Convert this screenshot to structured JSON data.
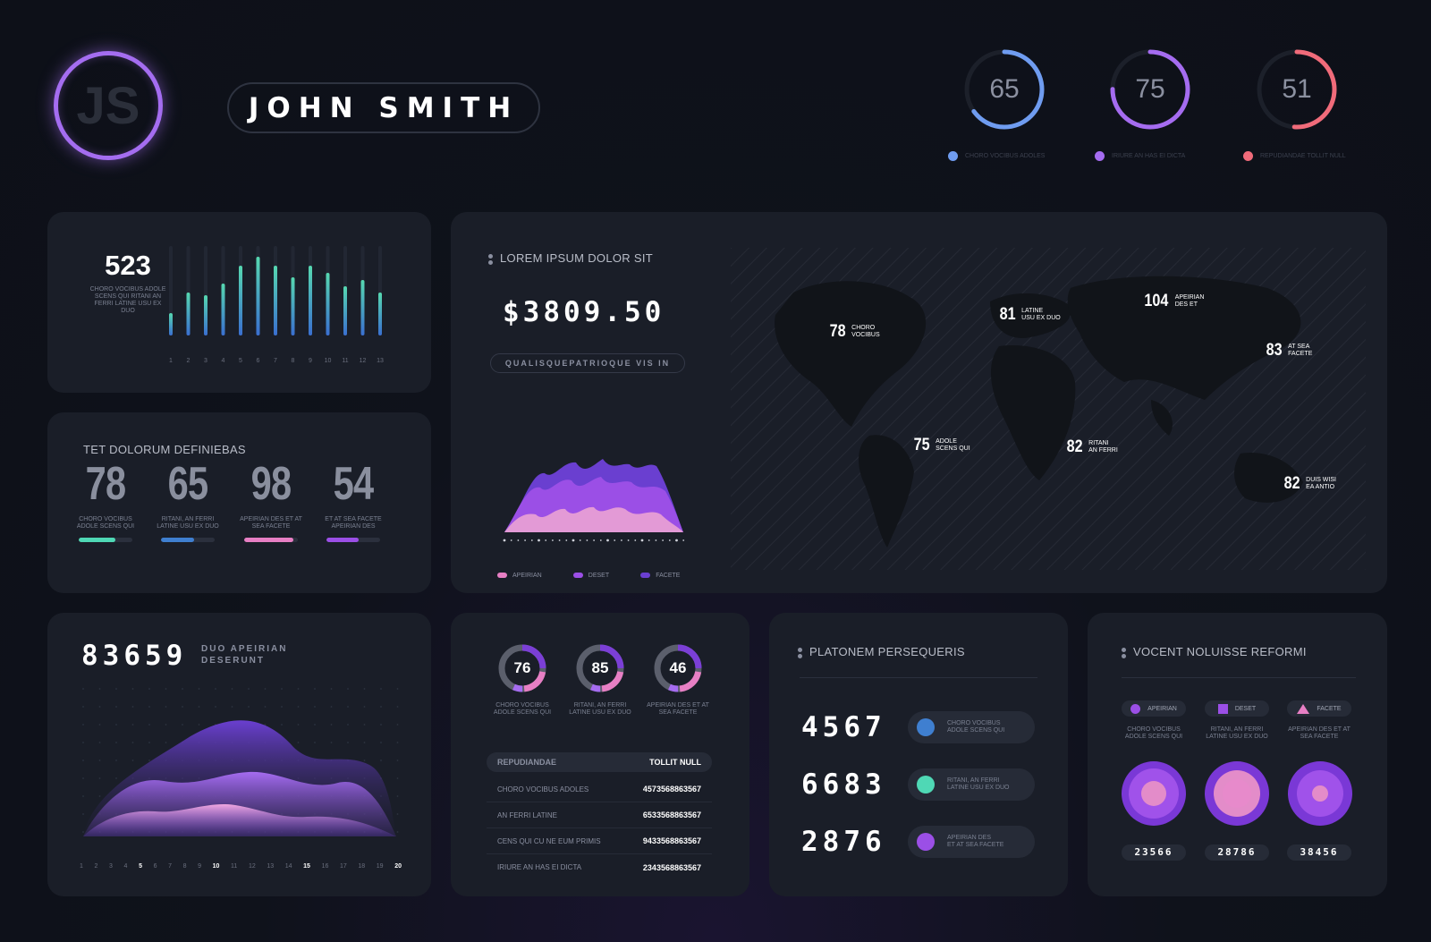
{
  "header": {
    "avatar_initials": "JS",
    "user_name": "JOHN SMITH",
    "rings": [
      {
        "value": "65",
        "pct": 0.65,
        "color": "#6f9cf0",
        "label": "CHORO VOCIBUS ADOLES"
      },
      {
        "value": "75",
        "pct": 0.75,
        "color": "#a56cf0",
        "label": "IRIURE AN HAS EI DICTA"
      },
      {
        "value": "51",
        "pct": 0.51,
        "color": "#f06b7a",
        "label": "REPUDIANDAE TOLLIT NULL"
      }
    ]
  },
  "bars_card": {
    "value": "523",
    "caption": "CHORO VOCIBUS ADOLE SCENS QUI RITANI AN FERRI LATINE USU EX DUO",
    "x_labels": [
      "1",
      "2",
      "3",
      "4",
      "5",
      "6",
      "7",
      "8",
      "9",
      "10",
      "11",
      "12",
      "13"
    ],
    "chart_data": {
      "type": "bar",
      "categories": [
        "1",
        "2",
        "3",
        "4",
        "5",
        "6",
        "7",
        "8",
        "9",
        "10",
        "11",
        "12",
        "13"
      ],
      "values": [
        25,
        48,
        45,
        58,
        78,
        88,
        78,
        65,
        78,
        70,
        55,
        62,
        48
      ],
      "ylim": [
        0,
        100
      ]
    }
  },
  "stats_card": {
    "title": "TET DOLORUM DEFINIEBAS",
    "items": [
      {
        "value": "78",
        "caption": "CHORO VOCIBUS ADOLE SCENS QUI",
        "pct": 0.68,
        "color": "#4fd8b5"
      },
      {
        "value": "65",
        "caption": "RITANI, AN FERRI LATINE USU EX DUO",
        "pct": 0.62,
        "color": "#3f7fd0"
      },
      {
        "value": "98",
        "caption": "APEIRIAN DES ET AT SEA FACETE",
        "pct": 0.92,
        "color": "#e77fc4"
      },
      {
        "value": "54",
        "caption": "ET AT SEA FACETE APEIRIAN DES",
        "pct": 0.6,
        "color": "#9b4fe6"
      }
    ]
  },
  "map_card": {
    "title": "LOREM IPSUM DOLOR SIT",
    "amount": "$3809.50",
    "subtitle": "QUALISQUEPATRIOQUE VIS IN",
    "legend": [
      {
        "label": "APEIRIAN",
        "color": "#e77fc4"
      },
      {
        "label": "DESET",
        "color": "#9b4fe6"
      },
      {
        "label": "FACETE",
        "color": "#6a3fd0"
      }
    ],
    "pins": [
      {
        "value": "78",
        "label1": "CHORO",
        "label2": "VOCIBUS",
        "color": "#9b4fe6"
      },
      {
        "value": "81",
        "label1": "LATINE",
        "label2": "USU EX DUO",
        "color": "#7b3fd6"
      },
      {
        "value": "104",
        "label1": "APEIRIAN",
        "label2": "DES ET",
        "color": "#9b4fe6"
      },
      {
        "value": "83",
        "label1": "AT SEA",
        "label2": "FACETE",
        "color": "#e77fc4"
      },
      {
        "value": "75",
        "label1": "ADOLE",
        "label2": "SCENS QUI",
        "color": "#e77fc4"
      },
      {
        "value": "82",
        "label1": "RITANI",
        "label2": "AN FERRI",
        "color": "#9b4fe6"
      },
      {
        "value": "82",
        "label1": "DUIS WISI",
        "label2": "EA ANTIO",
        "color": "#7b3fd6"
      }
    ]
  },
  "area_card": {
    "value": "83659",
    "label_line1": "DUO APEIRIAN",
    "label_line2": "DESERUNT",
    "x_labels": [
      "1",
      "2",
      "3",
      "4",
      "5",
      "6",
      "7",
      "8",
      "9",
      "10",
      "11",
      "12",
      "13",
      "14",
      "15",
      "16",
      "17",
      "18",
      "19",
      "20"
    ]
  },
  "donut_card": {
    "donuts": [
      {
        "value": "76",
        "caption": "CHORO VOCIBUS ADOLE SCENS QUI"
      },
      {
        "value": "85",
        "caption": "RITANI, AN FERRI LATINE USU EX DUO"
      },
      {
        "value": "46",
        "caption": "APEIRIAN DES ET AT SEA FACETE"
      }
    ],
    "table_header_left": "REPUDIANDAE",
    "table_header_right": "TOLLIT NULL",
    "rows": [
      {
        "k": "CHORO VOCIBUS ADOLES",
        "v": "4573568863567"
      },
      {
        "k": "AN FERRI LATINE",
        "v": "6533568863567"
      },
      {
        "k": "CENS QUI CU NE EUM PRIMIS",
        "v": "9433568863567"
      },
      {
        "k": "IRIURE AN HAS EI DICTA",
        "v": "2343568863567"
      }
    ]
  },
  "plat_card": {
    "title": "PLATONEM PERSEQUERIS",
    "rows": [
      {
        "value": "4567",
        "color": "#3f7fd0",
        "caption1": "CHORO VOCIBUS",
        "caption2": "ADOLE SCENS QUI"
      },
      {
        "value": "6683",
        "color": "#4fd8b5",
        "caption1": "RITANI, AN FERRI",
        "caption2": "LATINE USU EX DUO"
      },
      {
        "value": "2876",
        "color": "#9b4fe6",
        "caption1": "APEIRIAN DES",
        "caption2": "ET AT SEA FACETE"
      }
    ]
  },
  "vocent_card": {
    "title": "VOCENT NOLUISSE REFORMI",
    "chips": [
      {
        "label": "APEIRIAN",
        "shape": "circle-icon"
      },
      {
        "label": "DESET",
        "shape": "square-icon"
      },
      {
        "label": "FACETE",
        "shape": "triangle-icon"
      }
    ],
    "captions": [
      "CHORO VOCIBUS ADOLE SCENS QUI",
      "RITANI, AN FERRI LATINE USU EX DUO",
      "APEIRIAN DES ET AT SEA FACETE"
    ],
    "values": [
      "23566",
      "28786",
      "38456"
    ]
  }
}
